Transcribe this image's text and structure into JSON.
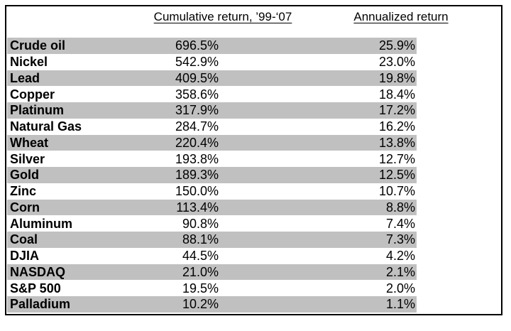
{
  "table": {
    "headers": {
      "cumulative": "Cumulative return, ’99-‘07",
      "annualized": "Annualized return"
    },
    "rows": [
      {
        "label": "Crude oil",
        "cumulative": "696.5%",
        "annualized": "25.9%"
      },
      {
        "label": "Nickel",
        "cumulative": "542.9%",
        "annualized": "23.0%"
      },
      {
        "label": "Lead",
        "cumulative": "409.5%",
        "annualized": "19.8%"
      },
      {
        "label": "Copper",
        "cumulative": "358.6%",
        "annualized": "18.4%"
      },
      {
        "label": "Platinum",
        "cumulative": "317.9%",
        "annualized": "17.2%"
      },
      {
        "label": "Natural Gas",
        "cumulative": "284.7%",
        "annualized": "16.2%"
      },
      {
        "label": "Wheat",
        "cumulative": "220.4%",
        "annualized": "13.8%"
      },
      {
        "label": "Silver",
        "cumulative": "193.8%",
        "annualized": "12.7%"
      },
      {
        "label": "Gold",
        "cumulative": "189.3%",
        "annualized": "12.5%"
      },
      {
        "label": "Zinc",
        "cumulative": "150.0%",
        "annualized": "10.7%"
      },
      {
        "label": "Corn",
        "cumulative": "113.4%",
        "annualized": "8.8%"
      },
      {
        "label": "Aluminum",
        "cumulative": "90.8%",
        "annualized": "7.4%"
      },
      {
        "label": "Coal",
        "cumulative": "88.1%",
        "annualized": "7.3%"
      },
      {
        "label": "DJIA",
        "cumulative": "44.5%",
        "annualized": "4.2%"
      },
      {
        "label": "NASDAQ",
        "cumulative": "21.0%",
        "annualized": "2.1%"
      },
      {
        "label": "S&P 500",
        "cumulative": "19.5%",
        "annualized": "2.0%"
      },
      {
        "label": "Palladium",
        "cumulative": "10.2%",
        "annualized": "1.1%"
      }
    ],
    "colors": {
      "row_stripe": "#c0c0c0",
      "border": "#000000",
      "background": "#ffffff",
      "text": "#000000"
    }
  },
  "chart_data": {
    "type": "table",
    "title": "",
    "columns": [
      "",
      "Cumulative return, ’99-‘07",
      "Annualized return"
    ],
    "categories": [
      "Crude oil",
      "Nickel",
      "Lead",
      "Copper",
      "Platinum",
      "Natural Gas",
      "Wheat",
      "Silver",
      "Gold",
      "Zinc",
      "Corn",
      "Aluminum",
      "Coal",
      "DJIA",
      "NASDAQ",
      "S&P 500",
      "Palladium"
    ],
    "series": [
      {
        "name": "Cumulative return, ’99-‘07",
        "unit": "%",
        "values": [
          696.5,
          542.9,
          409.5,
          358.6,
          317.9,
          284.7,
          220.4,
          193.8,
          189.3,
          150.0,
          113.4,
          90.8,
          88.1,
          44.5,
          21.0,
          19.5,
          10.2
        ]
      },
      {
        "name": "Annualized return",
        "unit": "%",
        "values": [
          25.9,
          23.0,
          19.8,
          18.4,
          17.2,
          16.2,
          13.8,
          12.7,
          12.5,
          10.7,
          8.8,
          7.4,
          7.3,
          4.2,
          2.1,
          2.0,
          1.1
        ]
      }
    ],
    "layout": {
      "striped_rows": true,
      "stripe_color": "#c0c0c0",
      "first_row_striped": true
    }
  }
}
